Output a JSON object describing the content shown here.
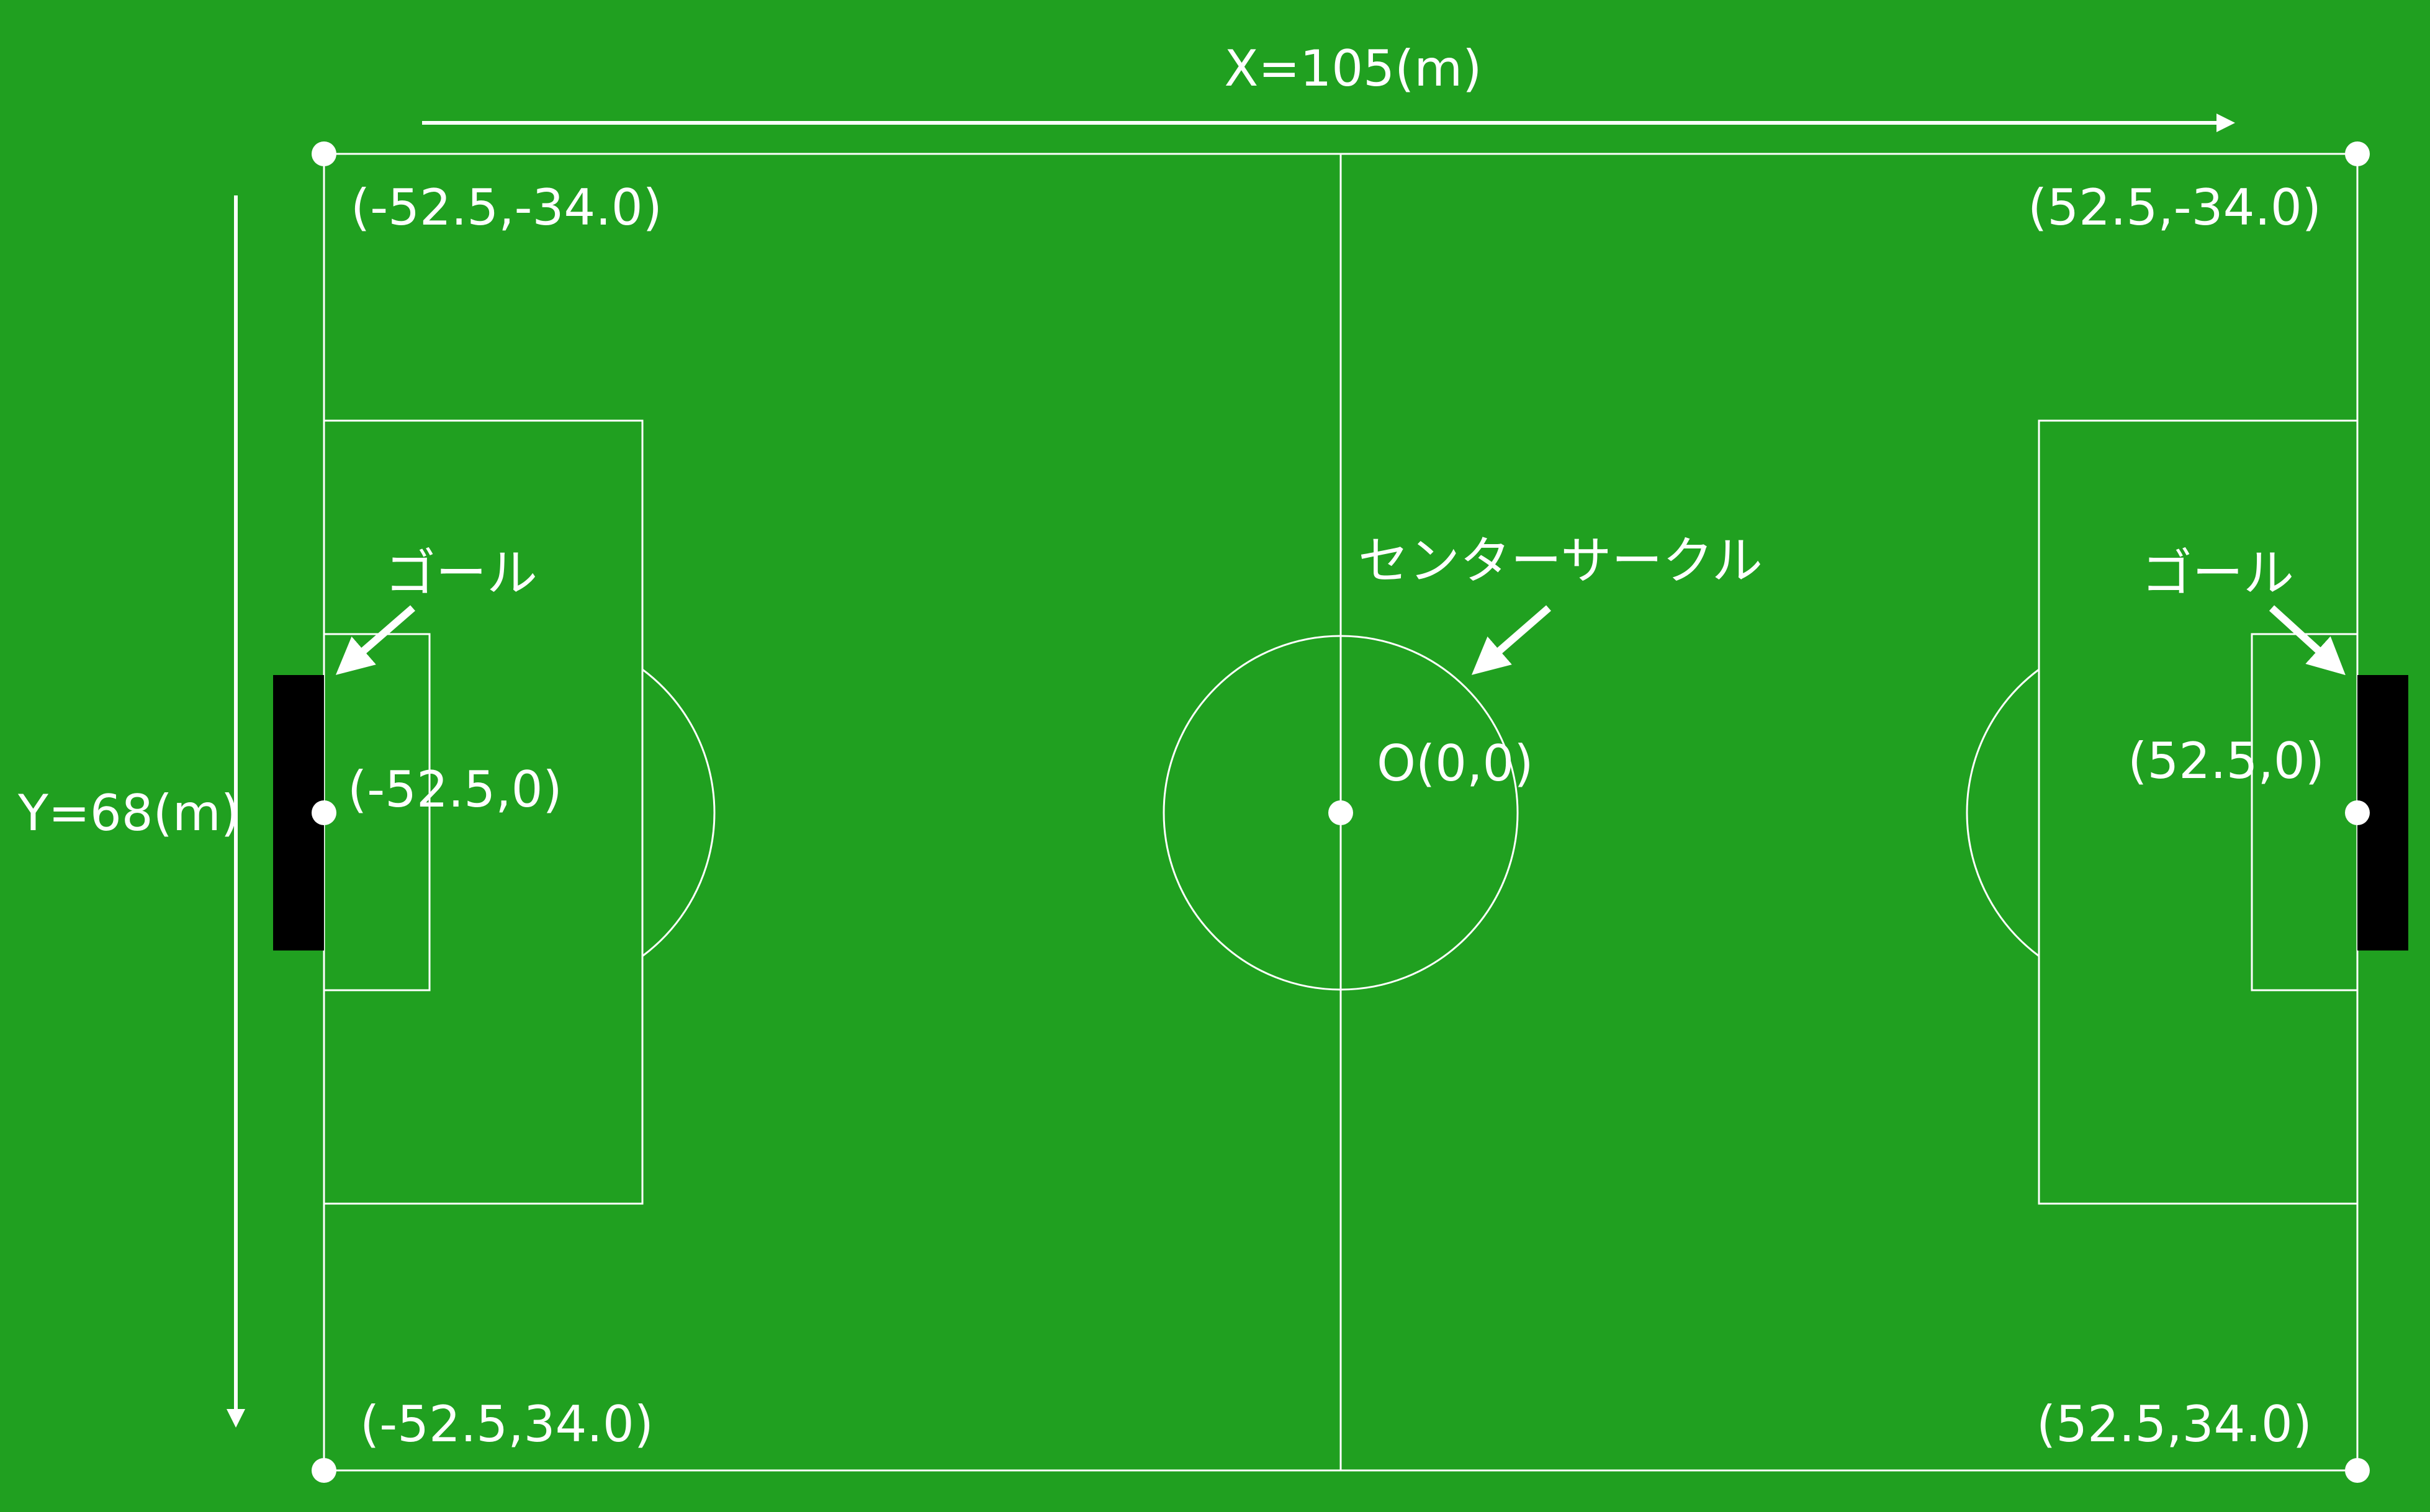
{
  "colors": {
    "field": "#20a020",
    "line": "#ffffff",
    "goal": "#000000"
  },
  "axes": {
    "x_label": "X=105(m)",
    "y_label": "Y=68(m)"
  },
  "field": {
    "length_m": 105,
    "width_m": 68
  },
  "points": [
    {
      "id": "corner-top-left",
      "x": -52.5,
      "y": -34.0,
      "label": "(-52.5,-34.0)"
    },
    {
      "id": "corner-top-right",
      "x": 52.5,
      "y": -34.0,
      "label": "(52.5,-34.0)"
    },
    {
      "id": "corner-bottom-left",
      "x": -52.5,
      "y": 34.0,
      "label": "(-52.5,34.0)"
    },
    {
      "id": "corner-bottom-right",
      "x": 52.5,
      "y": 34.0,
      "label": "(52.5,34.0)"
    },
    {
      "id": "goal-left",
      "x": -52.5,
      "y": 0,
      "label": "(-52.5,0)"
    },
    {
      "id": "goal-right",
      "x": 52.5,
      "y": 0,
      "label": "(52.5,0)"
    },
    {
      "id": "center",
      "x": 0,
      "y": 0,
      "label": "O(0,0)"
    }
  ],
  "annotations": {
    "goal_left": "ゴール",
    "goal_right": "ゴール",
    "center_circle": "センターサークル"
  }
}
